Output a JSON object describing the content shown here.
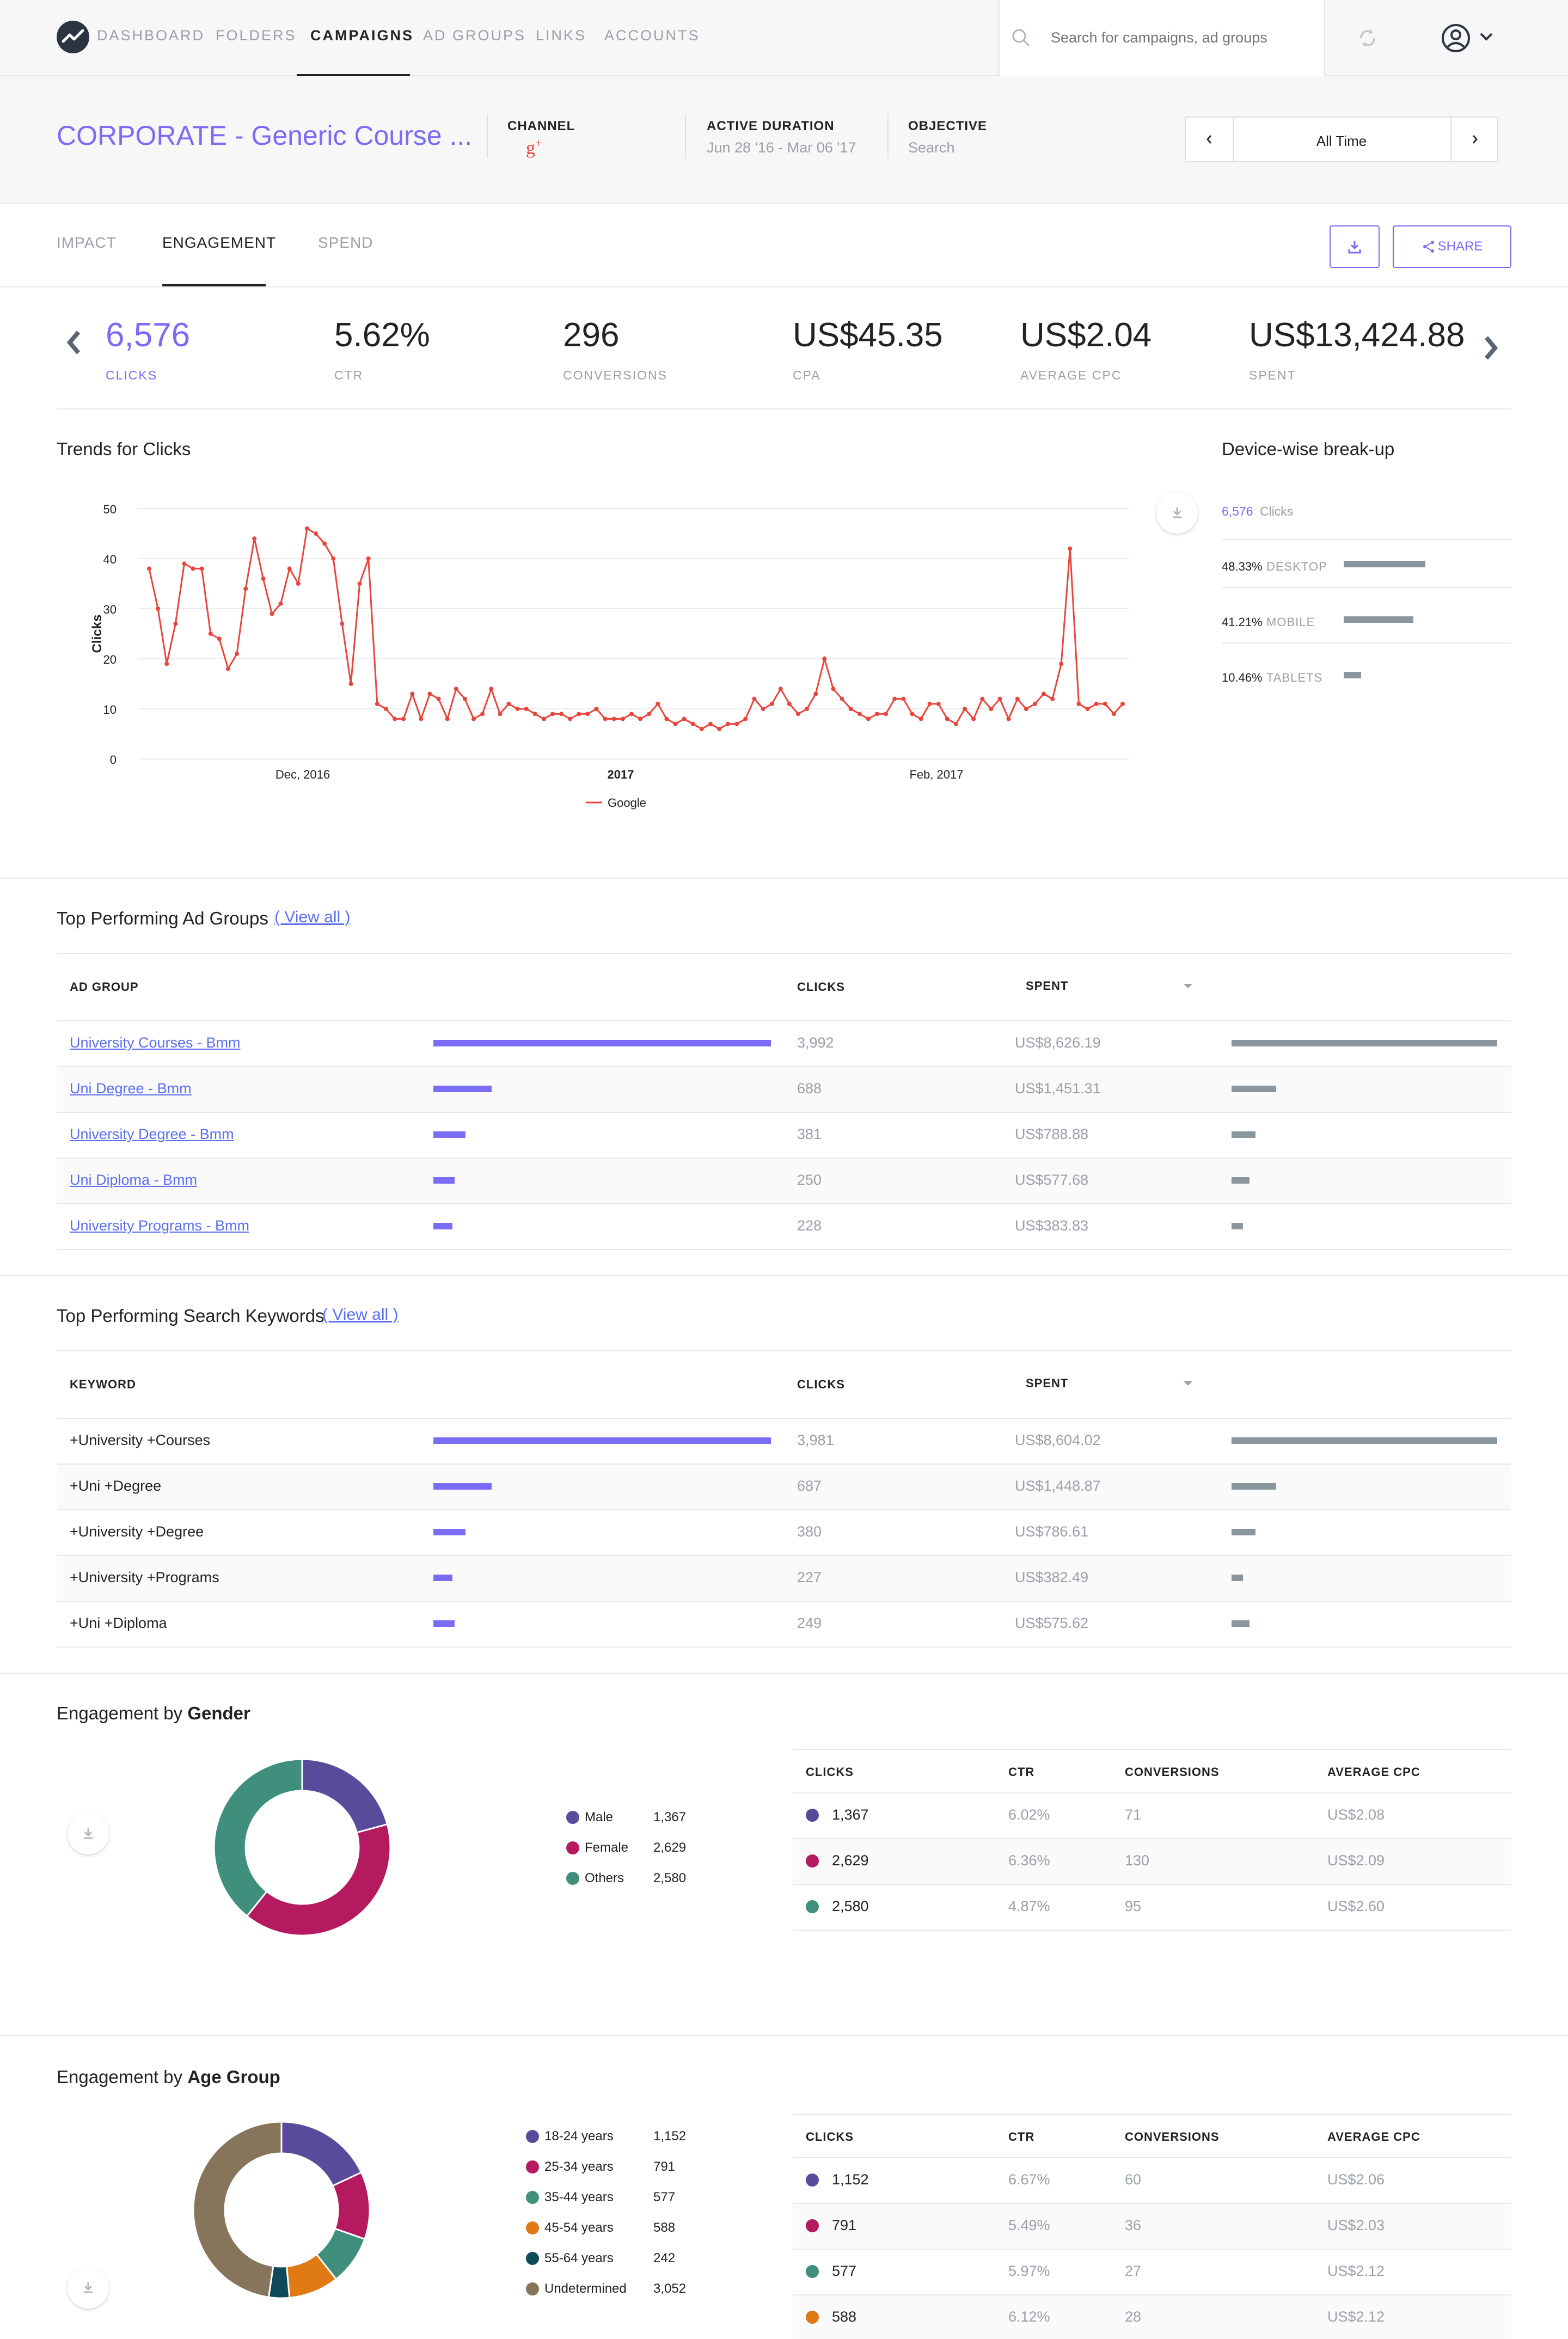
{
  "nav": {
    "items": [
      "DASHBOARD",
      "FOLDERS",
      "CAMPAIGNS",
      "AD GROUPS",
      "LINKS",
      "ACCOUNTS"
    ],
    "active": "CAMPAIGNS",
    "search_placeholder": "Search for campaigns, ad groups"
  },
  "header": {
    "campaign_title": "CORPORATE - Generic Course ...",
    "channel_label": "CHANNEL",
    "channel_icon": "google-plus-icon",
    "duration_label": "ACTIVE DURATION",
    "duration_value": "Jun 28 '16 - Mar 06 '17",
    "objective_label": "OBJECTIVE",
    "objective_value": "Search",
    "range_value": "All Time"
  },
  "tabs": [
    "IMPACT",
    "ENGAGEMENT",
    "SPEND"
  ],
  "active_tab": "ENGAGEMENT",
  "share_label": "SHARE",
  "metrics": [
    {
      "value": "6,576",
      "label": "CLICKS"
    },
    {
      "value": "5.62%",
      "label": "CTR"
    },
    {
      "value": "296",
      "label": "CONVERSIONS"
    },
    {
      "value": "US$45.35",
      "label": "CPA"
    },
    {
      "value": "US$2.04",
      "label": "AVERAGE CPC"
    },
    {
      "value": "US$13,424.88",
      "label": "SPENT"
    }
  ],
  "trend": {
    "title": "Trends for Clicks",
    "chart_data": {
      "type": "line",
      "title": "",
      "xlabel": "",
      "ylabel": "Clicks",
      "ylim": [
        0,
        50
      ],
      "yticks": [
        "0",
        "10",
        "20",
        "30",
        "40",
        "50"
      ],
      "xtick_labels": [
        "Dec, 2016",
        "2017",
        "Feb, 2017"
      ],
      "series": [
        {
          "name": "Google",
          "color": "#e8463c",
          "values": [
            38,
            30,
            19,
            27,
            39,
            38,
            38,
            25,
            24,
            18,
            21,
            34,
            44,
            36,
            29,
            31,
            38,
            35,
            46,
            45,
            43,
            40,
            27,
            15,
            35,
            40,
            11,
            10,
            8,
            8,
            13,
            8,
            13,
            12,
            8,
            14,
            12,
            8,
            9,
            14,
            9,
            11,
            10,
            10,
            9,
            8,
            9,
            9,
            8,
            9,
            9,
            10,
            8,
            8,
            8,
            9,
            8,
            9,
            11,
            8,
            7,
            8,
            7,
            6,
            7,
            6,
            7,
            7,
            8,
            12,
            10,
            11,
            14,
            11,
            9,
            10,
            13,
            20,
            14,
            12,
            10,
            9,
            8,
            9,
            9,
            12,
            12,
            9,
            8,
            11,
            11,
            8,
            7,
            10,
            8,
            12,
            10,
            12,
            8,
            12,
            10,
            11,
            13,
            12,
            19,
            42,
            11,
            10,
            11,
            11,
            9,
            11
          ]
        }
      ]
    }
  },
  "device": {
    "title": "Device-wise break-up",
    "total_value": "6,576",
    "total_label": "Clicks",
    "rows": [
      {
        "pct": "48.33%",
        "label": "DESKTOP",
        "share": 0.4833
      },
      {
        "pct": "41.21%",
        "label": "MOBILE",
        "share": 0.4121
      },
      {
        "pct": "10.46%",
        "label": "TABLETS",
        "share": 0.1046
      }
    ]
  },
  "adgroups": {
    "title": "Top Performing Ad Groups",
    "view_all": "( View all )",
    "headers": [
      "AD GROUP",
      "CLICKS",
      "SPENT"
    ],
    "rows": [
      {
        "name": "University Courses - Bmm",
        "clicks": "3,992",
        "spent": "US$8,626.19",
        "click_share": 1.0,
        "spent_share": 1.0
      },
      {
        "name": "Uni Degree - Bmm",
        "clicks": "688",
        "spent": "US$1,451.31",
        "click_share": 0.172,
        "spent_share": 0.168
      },
      {
        "name": "University Degree - Bmm",
        "clicks": "381",
        "spent": "US$788.88",
        "click_share": 0.095,
        "spent_share": 0.091
      },
      {
        "name": "Uni Diploma - Bmm",
        "clicks": "250",
        "spent": "US$577.68",
        "click_share": 0.063,
        "spent_share": 0.067
      },
      {
        "name": "University Programs - Bmm",
        "clicks": "228",
        "spent": "US$383.83",
        "click_share": 0.057,
        "spent_share": 0.044
      }
    ]
  },
  "keywords": {
    "title": "Top Performing Search Keywords",
    "view_all": "( View all )",
    "headers": [
      "KEYWORD",
      "CLICKS",
      "SPENT"
    ],
    "rows": [
      {
        "name": "+University +Courses",
        "clicks": "3,981",
        "spent": "US$8,604.02",
        "click_share": 1.0,
        "spent_share": 1.0
      },
      {
        "name": "+Uni +Degree",
        "clicks": "687",
        "spent": "US$1,448.87",
        "click_share": 0.173,
        "spent_share": 0.168
      },
      {
        "name": "+University +Degree",
        "clicks": "380",
        "spent": "US$786.61",
        "click_share": 0.095,
        "spent_share": 0.091
      },
      {
        "name": "+University +Programs",
        "clicks": "227",
        "spent": "US$382.49",
        "click_share": 0.057,
        "spent_share": 0.044
      },
      {
        "name": "+Uni +Diploma",
        "clicks": "249",
        "spent": "US$575.62",
        "click_share": 0.063,
        "spent_share": 0.067
      }
    ]
  },
  "gender": {
    "title_prefix": "Engagement by ",
    "title_bold": "Gender",
    "headers": [
      "CLICKS",
      "CTR",
      "CONVERSIONS",
      "AVERAGE CPC"
    ],
    "chart_data": {
      "type": "pie",
      "slices": [
        {
          "name": "Male",
          "value": 1367,
          "label": "1,367",
          "color": "#5a4a9c"
        },
        {
          "name": "Female",
          "value": 2629,
          "label": "2,629",
          "color": "#b5195f"
        },
        {
          "name": "Others",
          "value": 2580,
          "label": "2,580",
          "color": "#3f8f7c"
        }
      ]
    },
    "rows": [
      {
        "clicks": "1,367",
        "ctr": "6.02%",
        "conv": "71",
        "cpc": "US$2.08",
        "color": "#5a4a9c"
      },
      {
        "clicks": "2,629",
        "ctr": "6.36%",
        "conv": "130",
        "cpc": "US$2.09",
        "color": "#b5195f"
      },
      {
        "clicks": "2,580",
        "ctr": "4.87%",
        "conv": "95",
        "cpc": "US$2.60",
        "color": "#3f8f7c"
      }
    ]
  },
  "age": {
    "title_prefix": "Engagement by ",
    "title_bold": "Age Group",
    "headers": [
      "CLICKS",
      "CTR",
      "CONVERSIONS",
      "AVERAGE CPC"
    ],
    "chart_data": {
      "type": "pie",
      "slices": [
        {
          "name": "18-24 years",
          "value": 1152,
          "label": "1,152",
          "color": "#5a4a9c"
        },
        {
          "name": "25-34 years",
          "value": 791,
          "label": "791",
          "color": "#b5195f"
        },
        {
          "name": "35-44 years",
          "value": 577,
          "label": "577",
          "color": "#3f8f7c"
        },
        {
          "name": "45-54 years",
          "value": 588,
          "label": "588",
          "color": "#e07a14"
        },
        {
          "name": "55-64 years",
          "value": 242,
          "label": "242",
          "color": "#0f4a5a"
        },
        {
          "name": "Undetermined",
          "value": 3052,
          "label": "3,052",
          "color": "#86755a"
        }
      ]
    },
    "rows": [
      {
        "clicks": "1,152",
        "ctr": "6.67%",
        "conv": "60",
        "cpc": "US$2.06",
        "color": "#5a4a9c"
      },
      {
        "clicks": "791",
        "ctr": "5.49%",
        "conv": "36",
        "cpc": "US$2.03",
        "color": "#b5195f"
      },
      {
        "clicks": "577",
        "ctr": "5.97%",
        "conv": "27",
        "cpc": "US$2.12",
        "color": "#3f8f7c"
      },
      {
        "clicks": "588",
        "ctr": "6.12%",
        "conv": "28",
        "cpc": "US$2.12",
        "color": "#e07a14"
      }
    ]
  },
  "colors": {
    "accent": "#7b6cf6",
    "line": "#e8463c",
    "muted": "#9aa0a8",
    "bar_gray": "#8a969d"
  }
}
